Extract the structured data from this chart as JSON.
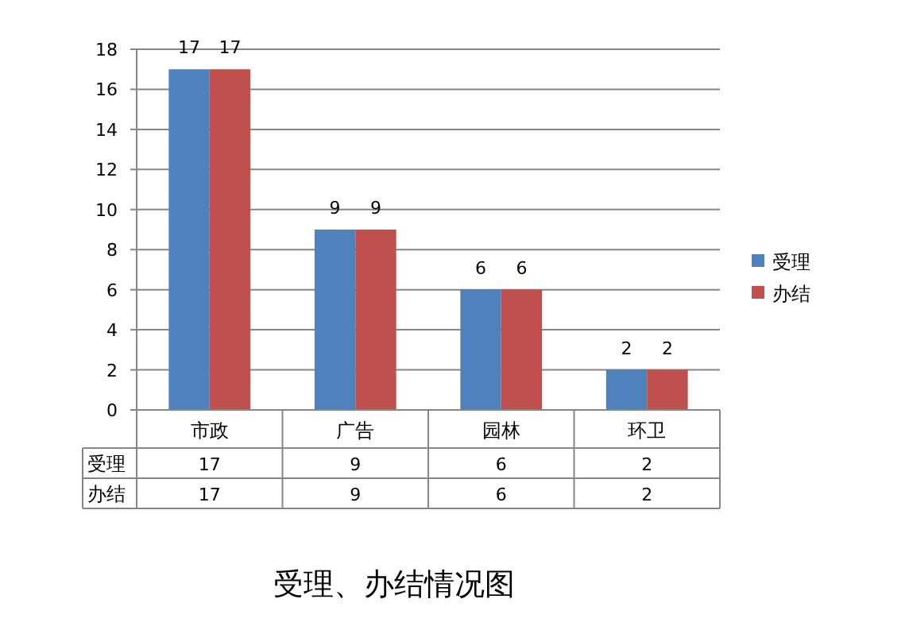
{
  "chart_data": {
    "type": "bar",
    "title": "受理、办结情况图",
    "categories": [
      "市政",
      "广告",
      "园林",
      "环卫"
    ],
    "series": [
      {
        "name": "受理",
        "color": "#4f81bd",
        "values": [
          17,
          9,
          6,
          2
        ]
      },
      {
        "name": "办结",
        "color": "#c0504d",
        "values": [
          17,
          9,
          6,
          2
        ]
      }
    ],
    "ylim": [
      0,
      18
    ],
    "yticks": [
      0,
      2,
      4,
      6,
      8,
      10,
      12,
      14,
      16,
      18
    ],
    "grid": "y",
    "legend": "right",
    "data_labels": true,
    "annotations": [
      "17",
      "9",
      "6",
      "2",
      "17",
      "9",
      "6",
      "2"
    ]
  }
}
